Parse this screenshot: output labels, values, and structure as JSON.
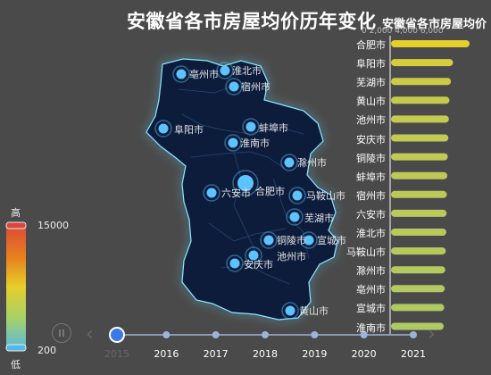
{
  "title": "安徽省各市房屋均价历年变化",
  "subtitle": "安徽省各市房屋均价",
  "axis_tick_text": "0 2,000 4,000 6,000",
  "visual_map": {
    "max_label": "高",
    "min_label": "低",
    "max_value": "15000",
    "min_value": "200",
    "colors": [
      "#d9463a",
      "#e8821e",
      "#e6cf2a",
      "#a6d06a",
      "#55b8e6"
    ]
  },
  "map_labels": [
    {
      "name": "亳州市"
    },
    {
      "name": "淮北市"
    },
    {
      "name": "宿州市"
    },
    {
      "name": "阜阳市"
    },
    {
      "name": "蚌埠市"
    },
    {
      "name": "淮南市"
    },
    {
      "name": "滁州市"
    },
    {
      "name": "六安市"
    },
    {
      "name": "合肥市"
    },
    {
      "name": "马鞍山市"
    },
    {
      "name": "芜湖市"
    },
    {
      "name": "铜陵市"
    },
    {
      "name": "宣城市"
    },
    {
      "name": "池州市"
    },
    {
      "name": "安庆市"
    },
    {
      "name": "黄山市"
    }
  ],
  "chart_data": {
    "type": "bar",
    "orientation": "horizontal",
    "title": "安徽省各市房屋均价",
    "categories": [
      "合肥市",
      "阜阳市",
      "芜湖市",
      "黄山市",
      "池州市",
      "安庆市",
      "铜陵市",
      "蚌埠市",
      "宿州市",
      "六安市",
      "淮北市",
      "马鞍山市",
      "滁州市",
      "亳州市",
      "宣城市",
      "淮南市"
    ],
    "values": [
      7600,
      6000,
      5800,
      5650,
      5600,
      5550,
      5500,
      5450,
      5400,
      5380,
      5350,
      5300,
      5250,
      5200,
      5150,
      5100
    ],
    "colors": [
      "#e6cf2a",
      "#d6cc3c",
      "#cbcb46",
      "#c6ca4c",
      "#c3ca50",
      "#c1ca52",
      "#bfc954",
      "#bdc956",
      "#bbc958",
      "#bac95a",
      "#b9c95b",
      "#b7c95d",
      "#b5c95f",
      "#b3c961",
      "#b1c963",
      "#afc965"
    ],
    "xlim": [
      0,
      7600
    ]
  },
  "timeline": {
    "years": [
      "2015",
      "2016",
      "2017",
      "2018",
      "2019",
      "2020",
      "2021"
    ],
    "current": "2015"
  },
  "colors": {
    "background": "#4a4a4a",
    "map_fill": "#0d1a3a",
    "map_glow": "#66d9ff",
    "marker": "#5dc3ff",
    "timeline": "#9fb2d8",
    "timeline_active": "#3c78e6"
  }
}
